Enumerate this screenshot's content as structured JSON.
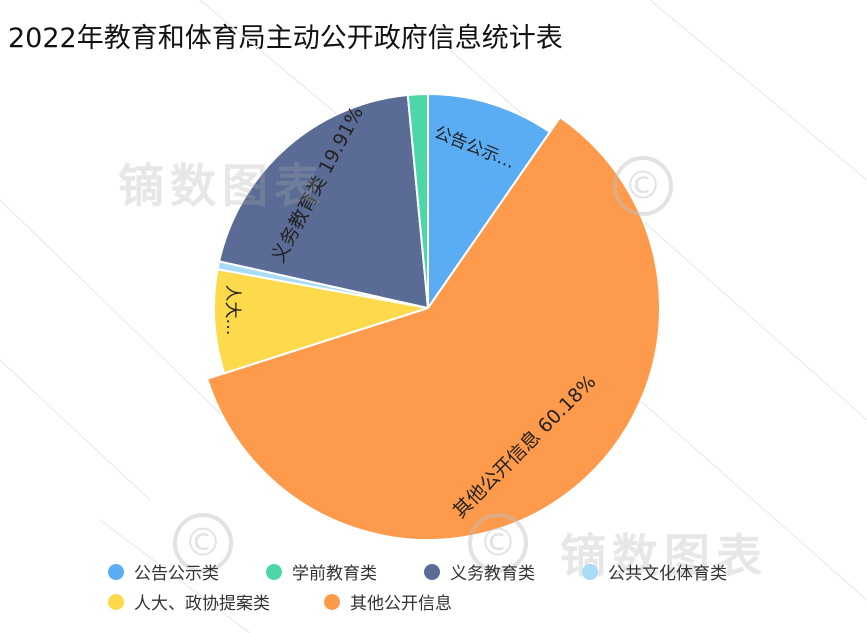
{
  "chart_data": {
    "type": "pie",
    "title": "2022年教育和体育局主动公开政府信息统计表",
    "slices": [
      {
        "name": "公告公示类",
        "value": 9.6,
        "color": "#5aacf3",
        "label": "公告公示…"
      },
      {
        "name": "其他公开信息",
        "value": 60.18,
        "color": "#fd9a4c",
        "label": "其他公开信息 60.18%"
      },
      {
        "name": "人大、政协提案类",
        "value": 7.8,
        "color": "#fcda4b",
        "label": "人大…"
      },
      {
        "name": "公共文化体育类",
        "value": 0.6,
        "color": "#a8dcf6",
        "label": ""
      },
      {
        "name": "义务教育类",
        "value": 19.91,
        "color": "#5a6c95",
        "label": "义务教育类 19.91%"
      },
      {
        "name": "学前教育类",
        "value": 1.5,
        "color": "#4dd6a8",
        "label": ""
      }
    ],
    "legend_position": "bottom",
    "legend": [
      "公告公示类",
      "学前教育类",
      "义务教育类",
      "公共文化体育类",
      "人大、政协提案类",
      "其他公开信息"
    ]
  },
  "watermark": {
    "text": "镝数图表",
    "symbol": "©"
  }
}
